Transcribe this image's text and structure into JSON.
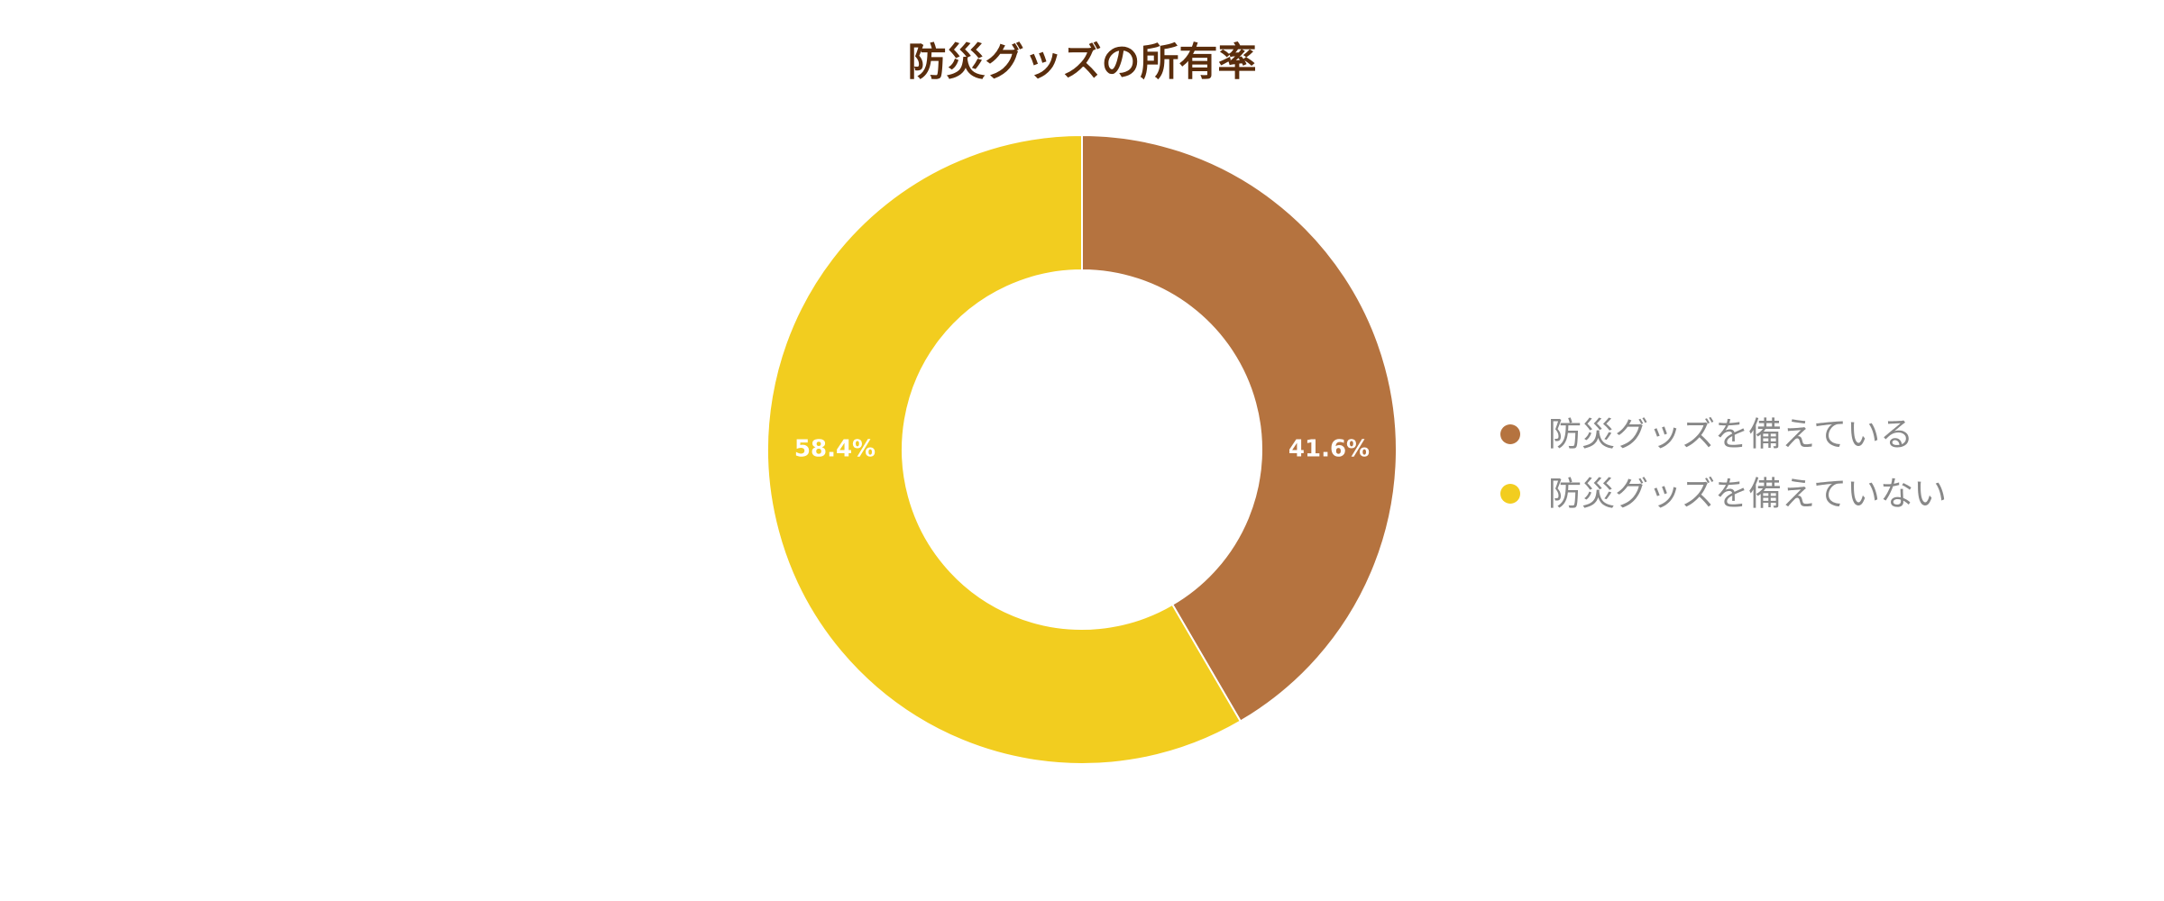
{
  "chart_data": {
    "type": "donut",
    "title": "防災グッズの所有率",
    "categories": [
      "防災グッズを備えている",
      "防災グッズを備えていない"
    ],
    "values": [
      41.6,
      58.4
    ],
    "value_labels": [
      "41.6%",
      "58.4%"
    ],
    "colors": [
      "#b5733f",
      "#f2cd1f"
    ],
    "legend": "right"
  }
}
